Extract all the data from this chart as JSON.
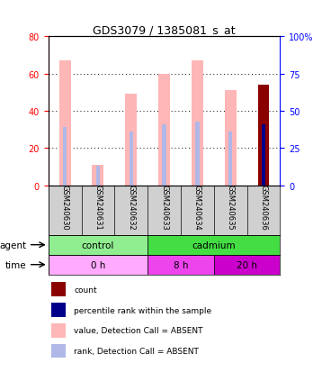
{
  "title": "GDS3079 / 1385081_s_at",
  "samples": [
    "GSM240630",
    "GSM240631",
    "GSM240632",
    "GSM240633",
    "GSM240634",
    "GSM240635",
    "GSM240636"
  ],
  "value_absent": [
    67,
    11,
    49,
    60,
    67,
    51,
    0
  ],
  "rank_absent": [
    39,
    13,
    36,
    41,
    43,
    36,
    0
  ],
  "count_value": [
    0,
    0,
    0,
    0,
    0,
    0,
    54
  ],
  "percentile_rank": [
    0,
    0,
    0,
    0,
    0,
    0,
    41
  ],
  "ylim_left": [
    0,
    80
  ],
  "ylim_right": [
    0,
    100
  ],
  "yticks_left": [
    0,
    20,
    40,
    60,
    80
  ],
  "yticks_right": [
    0,
    25,
    50,
    75,
    100
  ],
  "ytick_right_labels": [
    "0",
    "25",
    "50",
    "75",
    "100%"
  ],
  "color_value_absent": "#ffb6b6",
  "color_rank_absent": "#b0b8e8",
  "color_count": "#8b0000",
  "color_percentile": "#00008b",
  "agent_groups": [
    {
      "label": "control",
      "start": 0,
      "end": 3,
      "color": "#90ee90"
    },
    {
      "label": "cadmium",
      "start": 3,
      "end": 7,
      "color": "#44dd44"
    }
  ],
  "time_groups": [
    {
      "label": "0 h",
      "start": 0,
      "end": 3,
      "color": "#ffaaff"
    },
    {
      "label": "8 h",
      "start": 3,
      "end": 5,
      "color": "#ee44ee"
    },
    {
      "label": "20 h",
      "start": 5,
      "end": 7,
      "color": "#cc00cc"
    }
  ],
  "legend_items": [
    {
      "label": "count",
      "color": "#8b0000"
    },
    {
      "label": "percentile rank within the sample",
      "color": "#00008b"
    },
    {
      "label": "value, Detection Call = ABSENT",
      "color": "#ffb6b6"
    },
    {
      "label": "rank, Detection Call = ABSENT",
      "color": "#b0b8e8"
    }
  ]
}
